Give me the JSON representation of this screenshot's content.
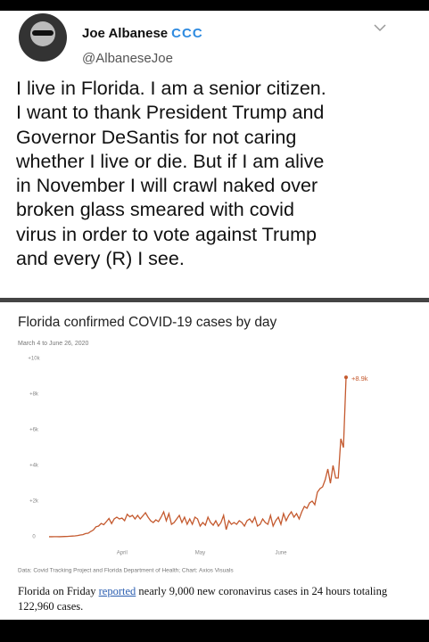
{
  "tweet": {
    "name": "Joe Albanese",
    "badges": "CCC",
    "handle": "@AlbaneseJoe",
    "text": [
      "I live in Florida. I am a senior citizen.",
      "I want to thank President Trump and",
      "Governor DeSantis for not caring",
      "whether I live or die.  But if I am alive",
      "in November I will crawl naked over",
      "broken glass smeared with covid",
      "virus in order to vote against Trump",
      "and every (R) I see."
    ]
  },
  "chart_data": {
    "type": "line",
    "title": "Florida confirmed COVID-19 cases by day",
    "subtitle": "March 4 to June 26, 2020",
    "categories": [
      null,
      null,
      null,
      null,
      null,
      null,
      null,
      null,
      null,
      null,
      null,
      null,
      null,
      null,
      null,
      null,
      null,
      null,
      null,
      null,
      null,
      null,
      null,
      null,
      null,
      null,
      null,
      null,
      "April",
      null,
      null,
      null,
      null,
      null,
      null,
      null,
      null,
      null,
      null,
      null,
      null,
      null,
      null,
      null,
      null,
      null,
      null,
      null,
      null,
      null,
      null,
      null,
      null,
      null,
      null,
      null,
      null,
      null,
      "May",
      null,
      null,
      null,
      null,
      null,
      null,
      null,
      null,
      null,
      null,
      null,
      null,
      null,
      null,
      null,
      null,
      null,
      null,
      null,
      null,
      null,
      null,
      null,
      null,
      null,
      null,
      null,
      null,
      null,
      null,
      "June",
      null,
      null,
      null,
      null,
      null,
      null,
      null,
      null,
      null,
      null,
      null,
      null,
      null,
      null,
      null,
      null,
      null,
      null,
      null,
      null,
      null,
      null,
      null,
      null,
      null
    ],
    "values": [
      2,
      3,
      5,
      8,
      4,
      10,
      15,
      20,
      30,
      40,
      50,
      70,
      100,
      120,
      180,
      200,
      300,
      380,
      560,
      600,
      750,
      680,
      850,
      1030,
      740,
      1000,
      1100,
      1000,
      1050,
      900,
      1260,
      1120,
      1200,
      1000,
      1200,
      1000,
      1170,
      1350,
      1100,
      900,
      800,
      950,
      850,
      1100,
      1400,
      900,
      1300,
      700,
      800,
      1000,
      1200,
      800,
      1100,
      700,
      1000,
      700,
      1100,
      1000,
      600,
      800,
      650,
      1100,
      800,
      650,
      900,
      600,
      800,
      1200,
      400,
      900,
      700,
      800,
      700,
      900,
      800,
      600,
      900,
      1000,
      800,
      1100,
      600,
      700,
      1000,
      800,
      700,
      1200,
      600,
      900,
      1100,
      700,
      1300,
      900,
      1200,
      1400,
      1100,
      1300,
      1000,
      1400,
      1700,
      1600,
      1900,
      2000,
      1800,
      2500,
      2700,
      2800,
      3200,
      3800,
      3000,
      4000,
      3300,
      3300,
      5500,
      5000,
      8942
    ],
    "color": "#c4592e",
    "annotation": "+8.9k",
    "ylim": [
      0,
      10000
    ],
    "yticks": [
      0,
      {
        "value": 2000,
        "label": "+2k"
      },
      {
        "value": 4000,
        "label": "+4k"
      },
      {
        "value": 6000,
        "label": "+6k"
      },
      {
        "value": 8000,
        "label": "+8k"
      },
      {
        "value": 10000,
        "label": "+10k"
      }
    ],
    "grid": false,
    "source": "Data: Covid Tracking Project and Florida Department of Health; Chart: Axios Visuals",
    "caption": [
      "Florida on Friday ",
      "reported",
      " nearly 9,000 new coronavirus cases in 24 hours totaling 122,960 cases."
    ]
  }
}
